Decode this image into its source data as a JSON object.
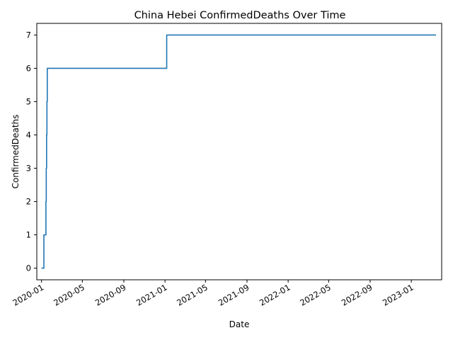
{
  "chart_data": {
    "type": "line",
    "title": "China Hebei ConfirmedDeaths Over Time",
    "xlabel": "Date",
    "ylabel": "ConfirmedDeaths",
    "x_tick_labels": [
      "2020-01",
      "2020-05",
      "2020-09",
      "2021-01",
      "2021-05",
      "2021-09",
      "2022-01",
      "2022-05",
      "2022-09",
      "2023-01"
    ],
    "y_tick_labels": [
      "0",
      "1",
      "2",
      "3",
      "4",
      "5",
      "6",
      "7"
    ],
    "xlim": [
      "2019-12-18",
      "2023-04-01"
    ],
    "ylim": [
      -0.35,
      7.35
    ],
    "grid": false,
    "line_color": "#1f77b4",
    "series": [
      {
        "values": [
          {
            "x": "2020-01-01",
            "y": 0
          },
          {
            "x": "2020-01-08",
            "y": 0
          },
          {
            "x": "2020-01-08",
            "y": 1
          },
          {
            "x": "2020-01-14",
            "y": 1
          },
          {
            "x": "2020-01-14",
            "y": 2
          },
          {
            "x": "2020-01-15",
            "y": 2
          },
          {
            "x": "2020-01-15",
            "y": 3
          },
          {
            "x": "2020-01-16",
            "y": 3
          },
          {
            "x": "2020-01-16",
            "y": 4
          },
          {
            "x": "2020-01-17",
            "y": 4
          },
          {
            "x": "2020-01-17",
            "y": 5
          },
          {
            "x": "2020-01-18",
            "y": 5
          },
          {
            "x": "2020-01-18",
            "y": 6
          },
          {
            "x": "2021-01-06",
            "y": 6
          },
          {
            "x": "2021-01-06",
            "y": 7
          },
          {
            "x": "2023-03-15",
            "y": 7
          }
        ]
      }
    ]
  }
}
